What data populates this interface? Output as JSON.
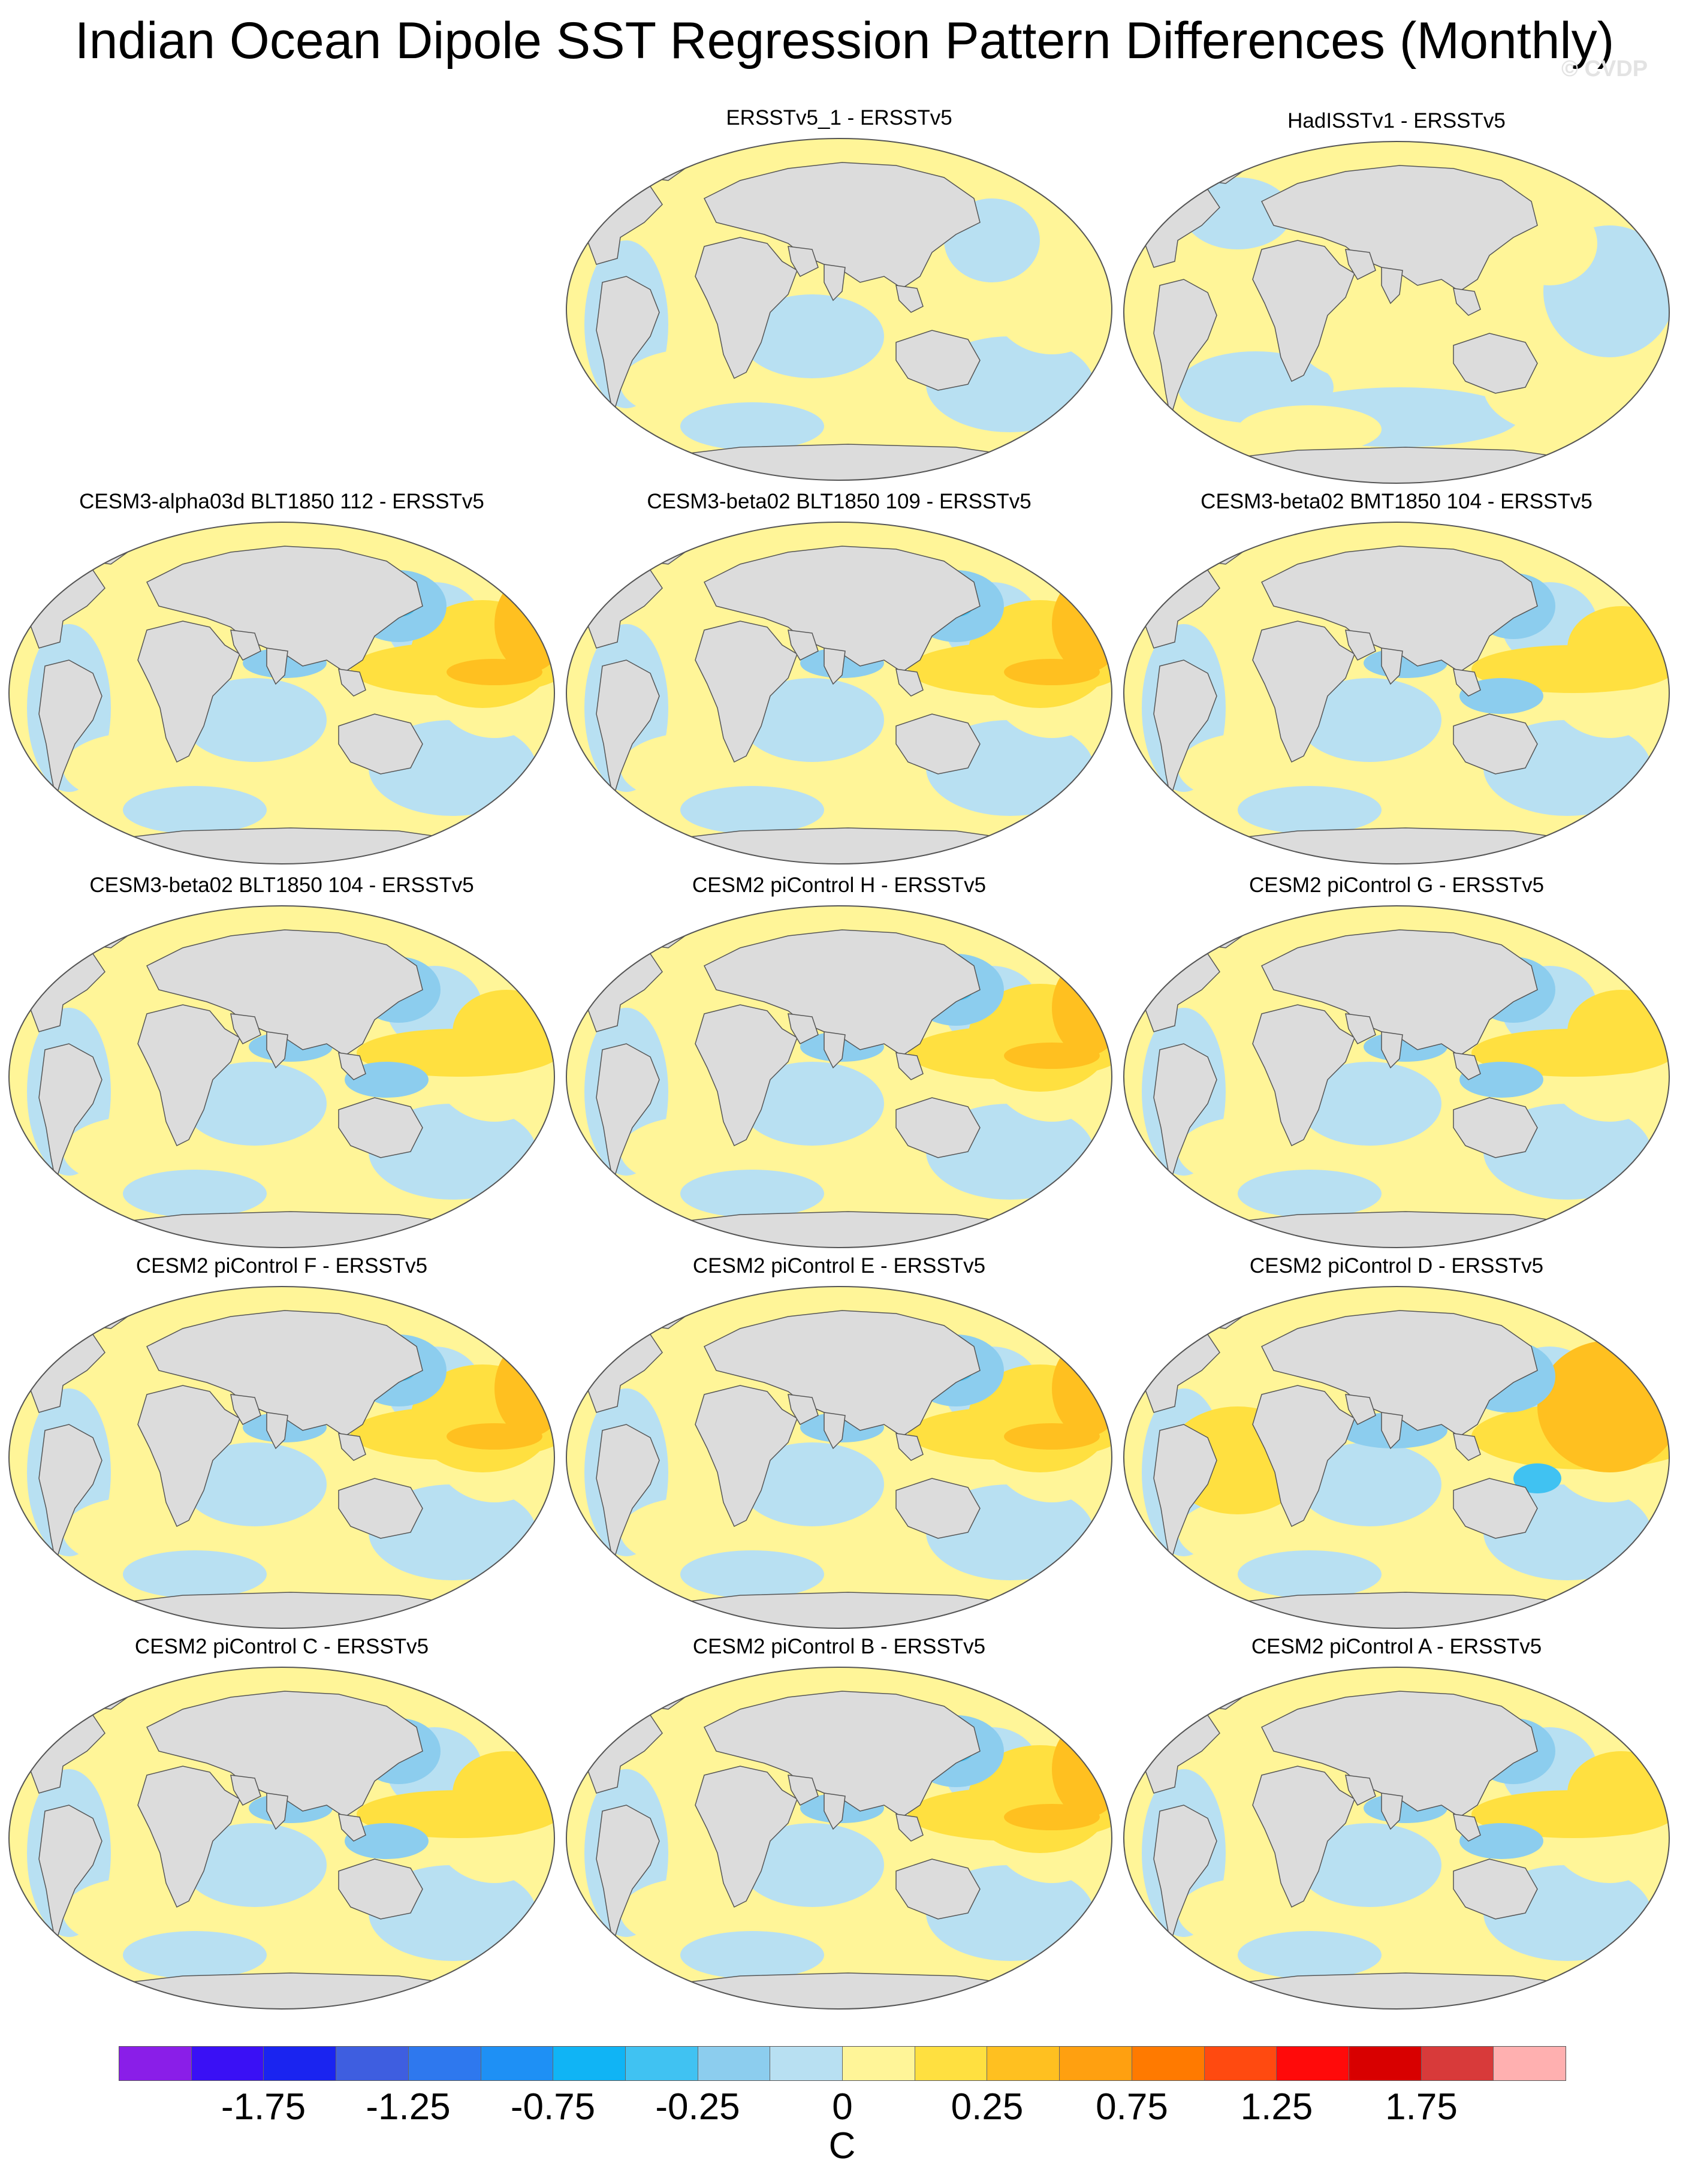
{
  "title": "Indian Ocean Dipole SST Regression Pattern Differences (Monthly)",
  "watermark": "© CVDP",
  "panels": [
    {
      "title": "ERSSTv5_1 - ERSSTv5",
      "variant": 0
    },
    {
      "title": "HadISSTv1 - ERSSTv5",
      "variant": 1
    },
    {
      "title": "CESM3-alpha03d BLT1850 112 - ERSSTv5",
      "variant": 2
    },
    {
      "title": "CESM3-beta02 BLT1850 109 - ERSSTv5",
      "variant": 2
    },
    {
      "title": "CESM3-beta02 BMT1850 104 - ERSSTv5",
      "variant": 3
    },
    {
      "title": "CESM3-beta02 BLT1850 104 - ERSSTv5",
      "variant": 3
    },
    {
      "title": "CESM2 piControl H - ERSSTv5",
      "variant": 2
    },
    {
      "title": "CESM2 piControl G - ERSSTv5",
      "variant": 3
    },
    {
      "title": "CESM2 piControl F - ERSSTv5",
      "variant": 2
    },
    {
      "title": "CESM2 piControl E - ERSSTv5",
      "variant": 2
    },
    {
      "title": "CESM2 piControl D - ERSSTv5",
      "variant": 4
    },
    {
      "title": "CESM2 piControl C - ERSSTv5",
      "variant": 3
    },
    {
      "title": "CESM2 piControl B - ERSSTv5",
      "variant": 2
    },
    {
      "title": "CESM2 piControl A - ERSSTv5",
      "variant": 3
    }
  ],
  "colorbar": {
    "unit": "C",
    "colors": [
      "#8a1ee8",
      "#3a10f5",
      "#1a24f0",
      "#3e5ee0",
      "#2e78ee",
      "#1e90f5",
      "#10b4f5",
      "#40c2f2",
      "#8ccdee",
      "#b8e0f2",
      "#fff598",
      "#ffe040",
      "#ffc020",
      "#ffa010",
      "#ff7a00",
      "#ff4a10",
      "#ff0a0a",
      "#d80000",
      "#d83a3a",
      "#ffb0b0"
    ],
    "tick_labels": [
      "-1.75",
      "-1.25",
      "-0.75",
      "-0.25",
      "0",
      "0.25",
      "0.75",
      "1.25",
      "1.75"
    ]
  },
  "map_colors": {
    "land": "#dcdcdc",
    "coast": "#555555",
    "blue_light": "#b8e0f2",
    "blue_mid": "#8ccdee",
    "blue_strong": "#40c2f2",
    "yellow_light": "#fff598",
    "yellow_mid": "#ffe040",
    "orange": "#ffc020"
  }
}
